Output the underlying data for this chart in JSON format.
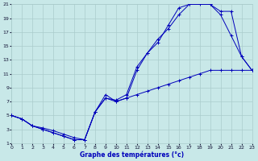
{
  "title": "Graphe des températures (°c)",
  "bg_color": "#c8e8e8",
  "grid_color": "#aacccc",
  "line_color": "#0000bb",
  "xlim": [
    0,
    23
  ],
  "ylim": [
    1,
    21
  ],
  "xticks": [
    0,
    1,
    2,
    3,
    4,
    5,
    6,
    7,
    8,
    9,
    10,
    11,
    12,
    13,
    14,
    15,
    16,
    17,
    18,
    19,
    20,
    21,
    22,
    23
  ],
  "yticks": [
    1,
    3,
    5,
    7,
    9,
    11,
    13,
    15,
    17,
    19,
    21
  ],
  "line1_x": [
    0,
    1,
    2,
    3,
    4,
    5,
    6,
    7,
    8,
    9,
    10,
    11,
    12,
    13,
    14,
    15,
    16,
    17,
    18,
    19,
    20,
    21,
    22,
    23
  ],
  "line1_y": [
    5.0,
    4.5,
    3.5,
    3.0,
    2.5,
    2.0,
    1.5,
    1.5,
    5.5,
    8.0,
    7.0,
    7.5,
    11.5,
    14.0,
    16.0,
    17.5,
    19.5,
    21.0,
    21.0,
    21.0,
    19.5,
    16.5,
    13.5,
    11.5
  ],
  "line2_x": [
    0,
    1,
    2,
    3,
    4,
    5,
    6,
    7,
    8,
    9,
    10,
    11,
    12,
    13,
    14,
    15,
    16,
    17,
    18,
    19,
    20,
    21,
    22,
    23
  ],
  "line2_y": [
    5.0,
    4.5,
    3.5,
    3.2,
    2.8,
    2.3,
    1.8,
    1.5,
    5.5,
    7.5,
    7.2,
    8.0,
    12.0,
    14.0,
    15.5,
    18.0,
    20.5,
    21.0,
    21.5,
    21.0,
    20.0,
    20.0,
    13.5,
    11.5
  ],
  "line3_x": [
    0,
    1,
    2,
    3,
    4,
    5,
    6,
    7,
    8,
    9,
    10,
    11,
    12,
    13,
    14,
    15,
    16,
    17,
    18,
    19,
    20,
    21,
    22,
    23
  ],
  "line3_y": [
    5.0,
    4.5,
    3.5,
    3.0,
    2.5,
    2.0,
    1.5,
    1.5,
    5.5,
    7.5,
    7.0,
    7.5,
    8.0,
    8.5,
    9.0,
    9.5,
    10.0,
    10.5,
    11.0,
    11.5,
    11.5,
    11.5,
    11.5,
    11.5
  ]
}
